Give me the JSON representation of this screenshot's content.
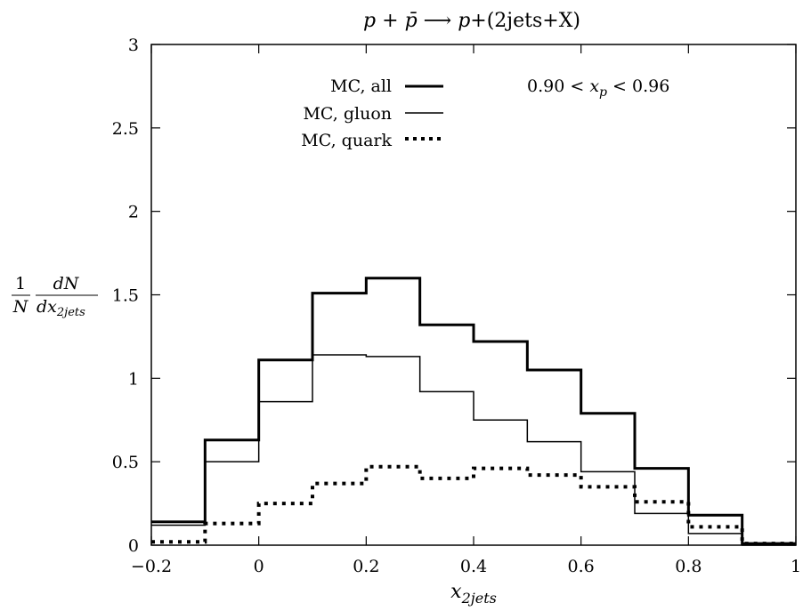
{
  "chart_data": {
    "type": "line",
    "title_parts": [
      "p",
      " + ",
      "p̄",
      " ⟶ ",
      "p",
      "+(2jets+X)"
    ],
    "xlabel_main": "x",
    "xlabel_sub": "2jets",
    "ylabel": {
      "fraction1_num": "1",
      "fraction1_den": "N",
      "fraction2_num": "dN",
      "fraction2_den_main": "dx",
      "fraction2_den_sub": "2jets"
    },
    "annotation": {
      "lhs": "0.90 <",
      "var_main": "x",
      "var_sub": "p",
      "rhs": "< 0.96"
    },
    "xlim": [
      -0.2,
      1.0
    ],
    "ylim": [
      0,
      3
    ],
    "x_ticks": [
      -0.2,
      0,
      0.2,
      0.4,
      0.6,
      0.8,
      1
    ],
    "x_tick_labels": [
      "−0.2",
      "0",
      "0.2",
      "0.4",
      "0.6",
      "0.8",
      "1"
    ],
    "y_ticks": [
      0,
      0.5,
      1,
      1.5,
      2,
      2.5,
      3
    ],
    "y_tick_labels": [
      "0",
      "0.5",
      "1",
      "1.5",
      "2",
      "2.5",
      "3"
    ],
    "bin_edges": [
      -0.2,
      -0.1,
      0.0,
      0.1,
      0.2,
      0.3,
      0.4,
      0.5,
      0.6,
      0.7,
      0.8,
      0.9,
      1.0
    ],
    "series": [
      {
        "name": "MC, all",
        "style": "thick",
        "values": [
          0.14,
          0.63,
          1.11,
          1.51,
          1.6,
          1.32,
          1.22,
          1.05,
          0.79,
          0.46,
          0.18,
          0.01
        ]
      },
      {
        "name": "MC, gluon",
        "style": "thin",
        "values": [
          0.12,
          0.5,
          0.86,
          1.14,
          1.13,
          0.92,
          0.75,
          0.62,
          0.44,
          0.19,
          0.07,
          0.0
        ]
      },
      {
        "name": "MC, quark",
        "style": "dotted",
        "values": [
          0.02,
          0.13,
          0.25,
          0.37,
          0.47,
          0.4,
          0.46,
          0.42,
          0.35,
          0.26,
          0.11,
          0.01
        ]
      }
    ],
    "legend_position": "top-left",
    "grid": false
  }
}
